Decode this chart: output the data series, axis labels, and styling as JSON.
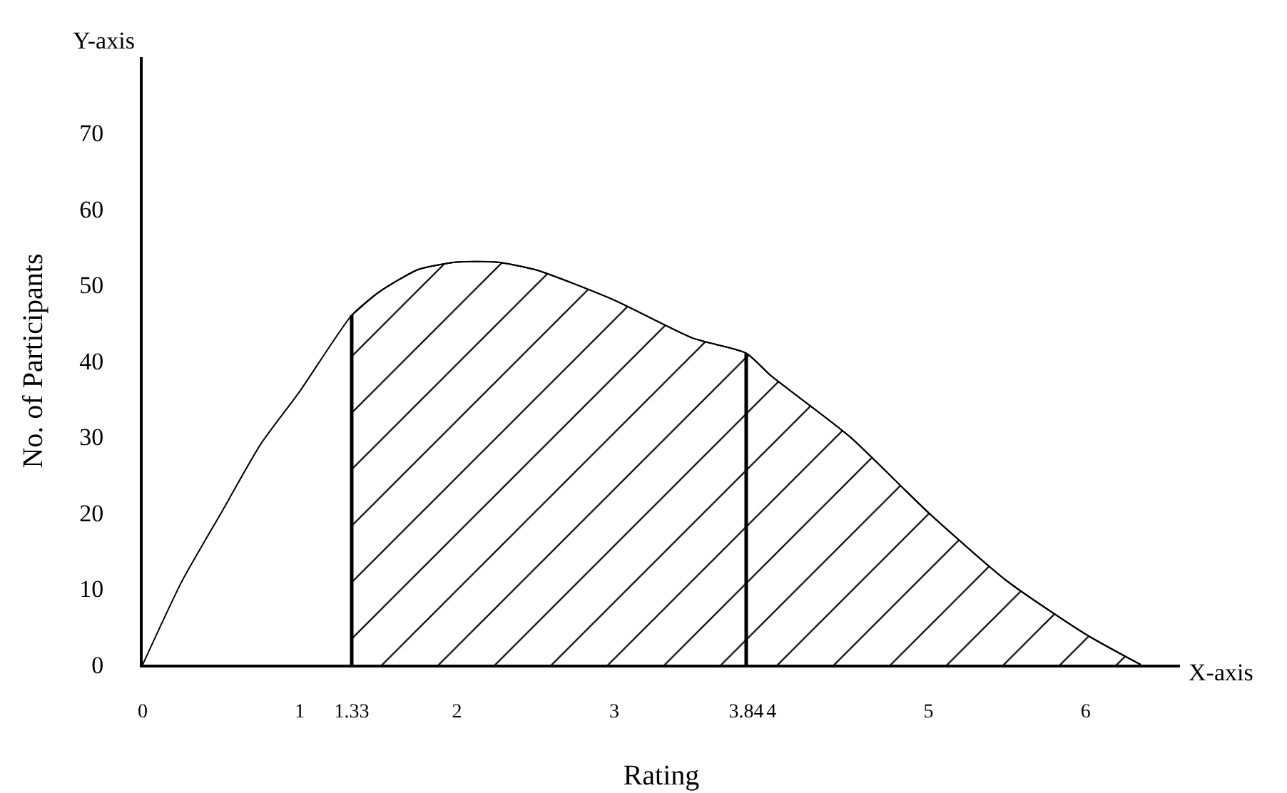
{
  "chart_data": {
    "type": "line",
    "xlabel": "Rating",
    "ylabel": "No. of Participants",
    "annotations": [
      "Y-axis",
      "X-axis"
    ],
    "series": [
      {
        "color": "#000000",
        "x": [
          0,
          0.25,
          0.5,
          0.75,
          1,
          1.33,
          1.5,
          1.75,
          2,
          2.25,
          2.5,
          3,
          3.5,
          3.84,
          4,
          4.5,
          5,
          5.5,
          6,
          6.35
        ],
        "values": [
          0,
          11,
          20,
          29,
          36,
          46,
          49,
          52,
          53,
          53,
          52,
          48,
          43,
          41,
          38,
          30,
          20,
          11,
          4,
          0
        ]
      },
      {
        "type": "area",
        "color": "#000000",
        "x": [
          1.33,
          1.5,
          1.75,
          2,
          2.25,
          2.5,
          3,
          3.5,
          3.84,
          4,
          4.5,
          5,
          5.5,
          6,
          6.35
        ],
        "values": [
          46,
          49,
          52,
          53,
          53,
          52,
          48,
          43,
          41,
          38,
          30,
          20,
          11,
          4,
          0
        ]
      }
    ],
    "ref_lines": [
      {
        "axis": "x",
        "value": 1.33,
        "color": "#000000"
      },
      {
        "axis": "x",
        "value": 3.84,
        "color": "#000000"
      }
    ],
    "xlim": [
      0,
      6.6
    ],
    "ylim": [
      0,
      80
    ],
    "xticks": [
      0,
      1,
      1.33,
      2,
      3,
      3.84,
      4,
      5,
      6
    ],
    "yticks": [
      0,
      10,
      20,
      30,
      40,
      50,
      60,
      70
    ],
    "grid": false,
    "marker": "none",
    "line_style": "solid"
  }
}
